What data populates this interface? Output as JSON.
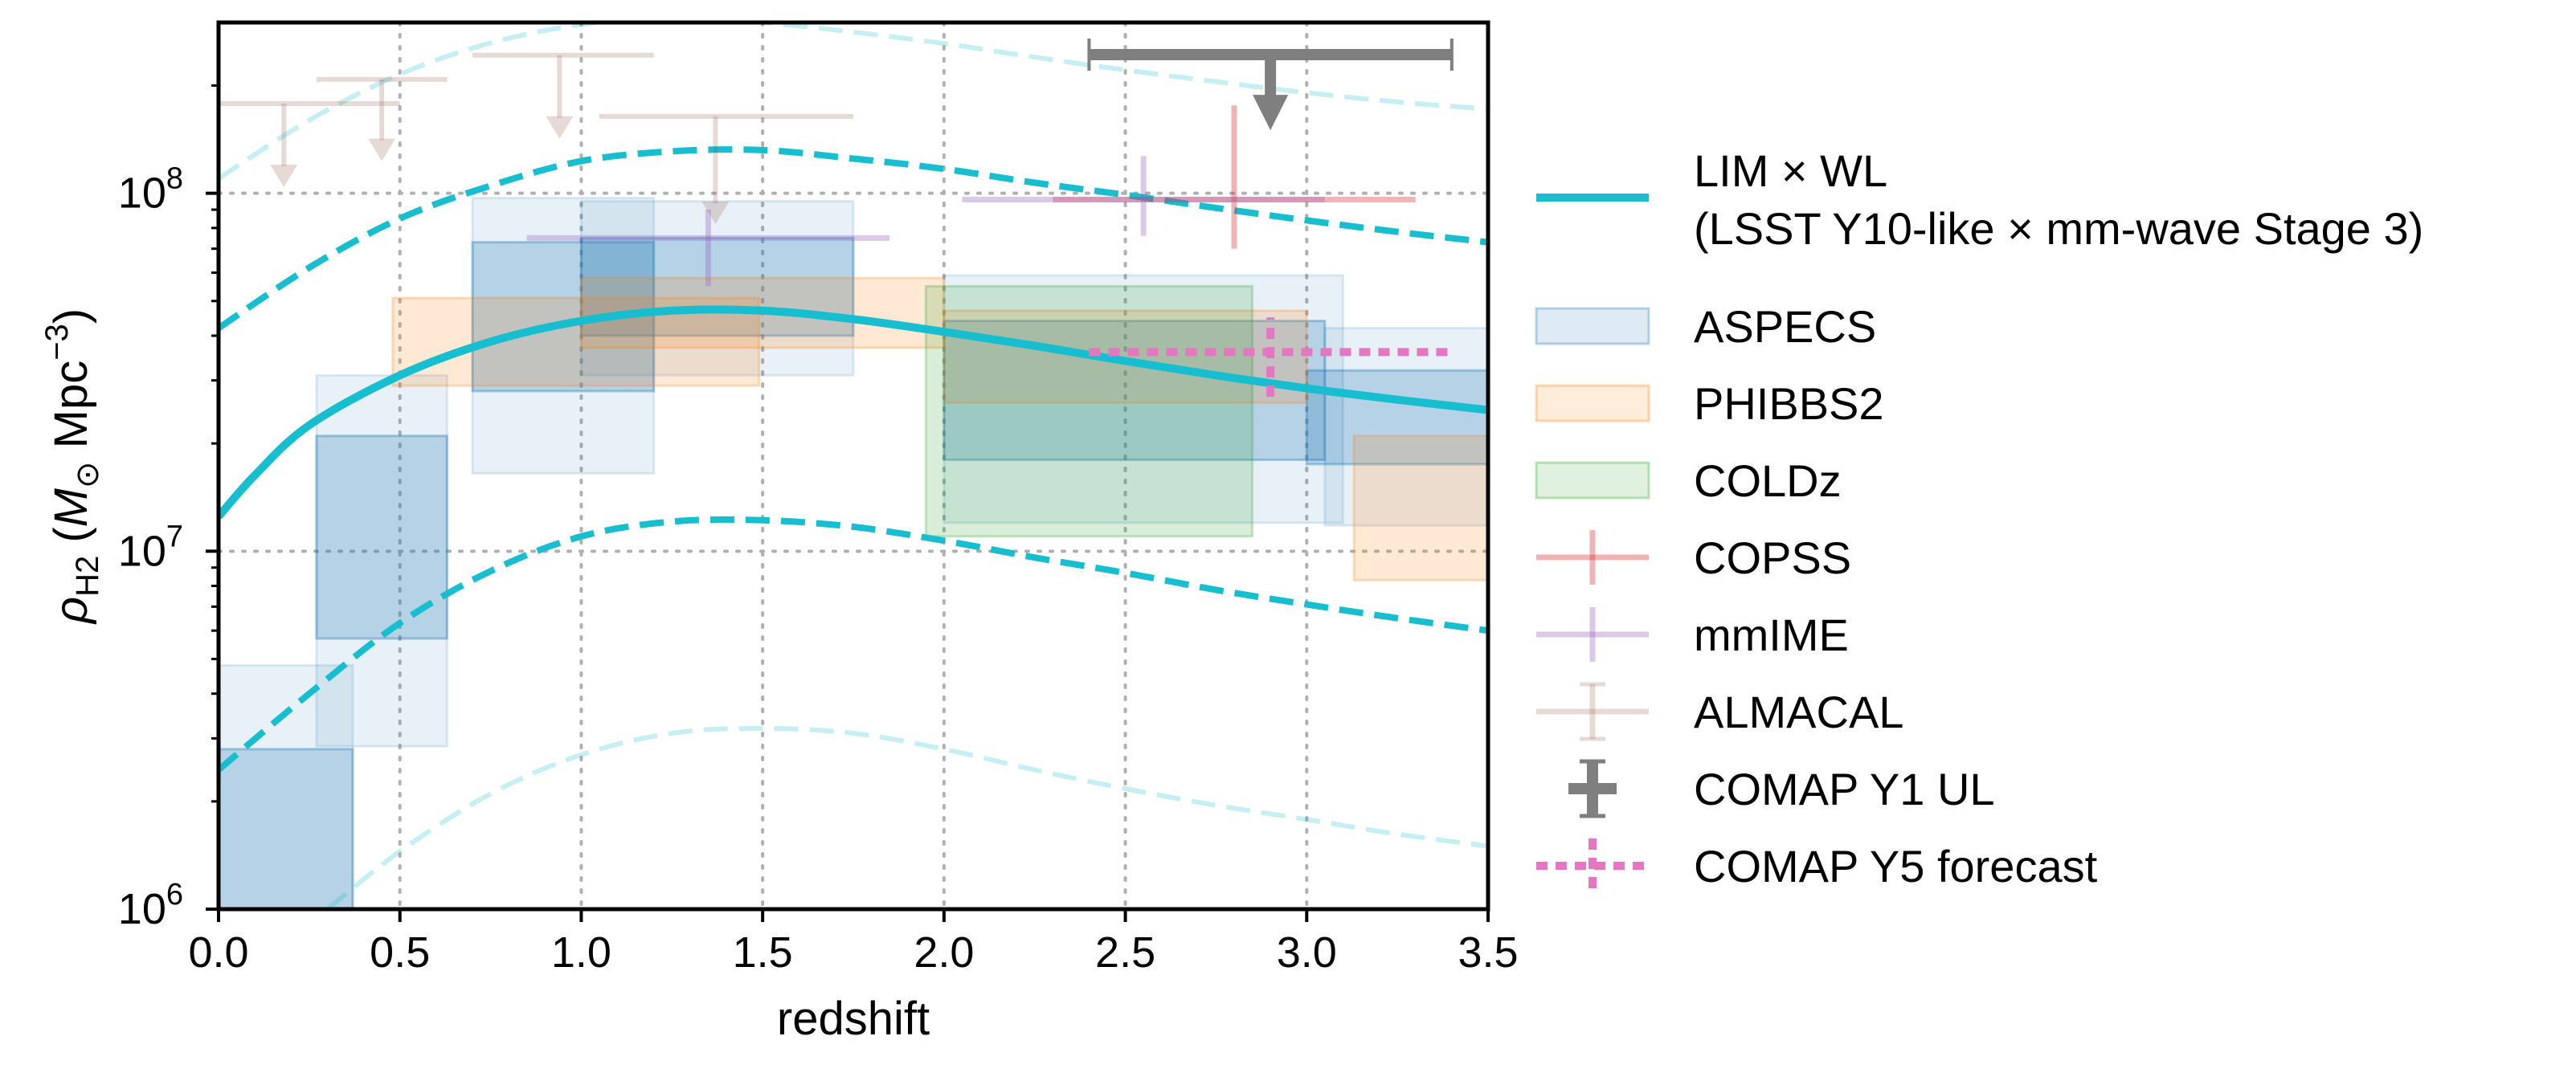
{
  "chart_data": {
    "type": "line",
    "xlabel": "redshift",
    "ylabel": {
      "prefix": "ρ",
      "sub": "H2",
      "pre_unit": " (",
      "unit_M": "M",
      "unit_sun": "⊙",
      "unit_mid": " Mpc",
      "unit_exp": "−3",
      "close": ")"
    },
    "xlim": [
      0,
      3.5
    ],
    "ylim": [
      1000000,
      300000000
    ],
    "yscale": "log",
    "xticks": [
      {
        "v": 0.0,
        "label": "0.0"
      },
      {
        "v": 0.5,
        "label": "0.5"
      },
      {
        "v": 1.0,
        "label": "1.0"
      },
      {
        "v": 1.5,
        "label": "1.5"
      },
      {
        "v": 2.0,
        "label": "2.0"
      },
      {
        "v": 2.5,
        "label": "2.5"
      },
      {
        "v": 3.0,
        "label": "3.0"
      },
      {
        "v": 3.5,
        "label": "3.5"
      }
    ],
    "yticks": [
      {
        "v": 1000000,
        "base": "10",
        "exp": "6"
      },
      {
        "v": 10000000,
        "base": "10",
        "exp": "7"
      },
      {
        "v": 100000000,
        "base": "10",
        "exp": "8"
      }
    ],
    "grid": true,
    "legend_position": "outside-right",
    "colors": {
      "lim_wl": "#17becf",
      "aspecs_fill": "#1f77b4",
      "phibbs_fill": "#ff7f0e",
      "coldz_fill": "#2ca02c",
      "copss": "#d62728",
      "mmime": "#9467bd",
      "almacal": "#8c564b",
      "comap_y1": "#7f7f7f",
      "comap_y5": "#e377c2"
    },
    "lim_wl": {
      "central": {
        "x": [
          0.0,
          0.1,
          0.25,
          0.5,
          0.75,
          1.0,
          1.25,
          1.5,
          1.75,
          2.0,
          2.25,
          2.5,
          2.75,
          3.0,
          3.25,
          3.5
        ],
        "y": [
          12500000,
          16300000,
          22500000,
          31000000,
          38500000,
          44000000,
          47000000,
          47000000,
          44500000,
          41000000,
          37500000,
          34000000,
          31000000,
          28500000,
          26500000,
          24800000
        ]
      },
      "inner_high": {
        "x": [
          0.0,
          0.25,
          0.5,
          0.75,
          1.0,
          1.25,
          1.5,
          1.75,
          2.0,
          2.25,
          2.5,
          2.75,
          3.0,
          3.25,
          3.5
        ],
        "y": [
          42000000,
          62000000,
          85000000,
          105000000,
          123000000,
          131000000,
          132000000,
          125000000,
          117000000,
          107000000,
          99000000,
          91000000,
          84000000,
          78000000,
          73000000
        ]
      },
      "inner_low": {
        "x": [
          0.0,
          0.25,
          0.5,
          0.75,
          1.0,
          1.25,
          1.5,
          1.75,
          2.0,
          2.25,
          2.5,
          2.75,
          3.0,
          3.25,
          3.5
        ],
        "y": [
          2450000,
          4000000,
          6300000,
          8800000,
          11000000,
          12100000,
          12200000,
          11700000,
          10700000,
          9600000,
          8700000,
          7800000,
          7100000,
          6500000,
          6000000
        ]
      },
      "outer_high": {
        "x": [
          0.0,
          0.25,
          0.5,
          0.75,
          1.0,
          1.25,
          1.5,
          1.75,
          2.0,
          2.25,
          2.5,
          2.75,
          3.0,
          3.25,
          3.5
        ],
        "y": [
          110000000,
          160000000,
          215000000,
          263000000,
          296000000,
          310000000,
          300000000,
          282000000,
          262000000,
          240000000,
          221000000,
          205000000,
          191000000,
          180000000,
          172000000
        ]
      },
      "outer_low": {
        "x": [
          0.3,
          0.5,
          0.75,
          1.0,
          1.25,
          1.5,
          1.75,
          2.0,
          2.25,
          2.5,
          2.75,
          3.0,
          3.25,
          3.5
        ],
        "y": [
          1000000,
          1450000,
          2100000,
          2700000,
          3100000,
          3200000,
          3100000,
          2800000,
          2450000,
          2170000,
          1950000,
          1780000,
          1620000,
          1500000
        ]
      }
    },
    "aspecs_boxes": [
      {
        "x0": 0.0,
        "x1": 0.37,
        "y0": 1000000,
        "y1": 2800000,
        "alpha": 0.25
      },
      {
        "x0": 0.0,
        "x1": 0.37,
        "y0": 1000000,
        "y1": 4800000,
        "alpha": 0.1
      },
      {
        "x0": 0.27,
        "x1": 0.63,
        "y0": 5700000,
        "y1": 21000000,
        "alpha": 0.25
      },
      {
        "x0": 0.27,
        "x1": 0.63,
        "y0": 2850000,
        "y1": 31000000,
        "alpha": 0.1
      },
      {
        "x0": 0.7,
        "x1": 1.2,
        "y0": 28000000,
        "y1": 73000000,
        "alpha": 0.25
      },
      {
        "x0": 0.7,
        "x1": 1.2,
        "y0": 16500000,
        "y1": 97000000,
        "alpha": 0.1
      },
      {
        "x0": 1.0,
        "x1": 1.75,
        "y0": 40000000,
        "y1": 75000000,
        "alpha": 0.25
      },
      {
        "x0": 1.0,
        "x1": 1.75,
        "y0": 31000000,
        "y1": 95000000,
        "alpha": 0.1
      },
      {
        "x0": 2.0,
        "x1": 3.05,
        "y0": 18000000,
        "y1": 44000000,
        "alpha": 0.25
      },
      {
        "x0": 2.0,
        "x1": 3.1,
        "y0": 12000000,
        "y1": 59000000,
        "alpha": 0.1
      },
      {
        "x0": 3.0,
        "x1": 3.5,
        "y0": 17500000,
        "y1": 32000000,
        "alpha": 0.25
      },
      {
        "x0": 3.05,
        "x1": 3.5,
        "y0": 11800000,
        "y1": 42000000,
        "alpha": 0.1
      }
    ],
    "phibbs_boxes": [
      {
        "x0": 0.48,
        "x1": 1.49,
        "y0": 29000000,
        "y1": 51000000
      },
      {
        "x0": 1.0,
        "x1": 2.0,
        "y0": 37000000,
        "y1": 58000000
      },
      {
        "x0": 2.0,
        "x1": 3.0,
        "y0": 26000000,
        "y1": 47000000
      },
      {
        "x0": 3.13,
        "x1": 3.5,
        "y0": 8300000,
        "y1": 21000000
      }
    ],
    "coldz_boxes": [
      {
        "x0": 1.95,
        "x1": 2.85,
        "y0": 11000000,
        "y1": 55000000
      }
    ],
    "copss": {
      "x": 2.8,
      "y": 96000000,
      "xerr": [
        2.3,
        3.3
      ],
      "yerr": [
        70000000,
        176000000
      ]
    },
    "mmime": [
      {
        "x": 1.35,
        "y": 75000000,
        "xerr": [
          0.85,
          1.85
        ],
        "yerr": [
          55000000,
          90000000
        ]
      },
      {
        "x": 2.55,
        "y": 96000000,
        "xerr": [
          2.05,
          3.05
        ],
        "yerr": [
          76000000,
          127000000
        ]
      }
    ],
    "almacal_upper_limits": [
      {
        "x": 0.18,
        "y": 178000000,
        "x0": 0.0,
        "x1": 0.5,
        "arrow_to": 104000000
      },
      {
        "x": 0.45,
        "y": 208000000,
        "x0": 0.27,
        "x1": 0.63,
        "arrow_to": 123000000
      },
      {
        "x": 0.94,
        "y": 243000000,
        "x0": 0.7,
        "x1": 1.2,
        "arrow_to": 142000000
      },
      {
        "x": 1.37,
        "y": 164000000,
        "x0": 1.05,
        "x1": 1.75,
        "arrow_to": 82000000
      }
    ],
    "comap_y1_ul": {
      "x": 2.9,
      "y": 244000000,
      "x0": 2.4,
      "x1": 3.4,
      "arrow_to": 150000000
    },
    "comap_y5_forecast": {
      "x": 2.9,
      "y": 36000000,
      "x0": 2.4,
      "x1": 3.4,
      "yerr": [
        27000000,
        45000000
      ]
    },
    "legend": [
      {
        "key": "lim_wl",
        "line1": "LIM × WL",
        "line2": "(LSST Y10-like × mm-wave Stage 3)"
      },
      {
        "key": "aspecs",
        "line1": "ASPECS"
      },
      {
        "key": "phibbs",
        "line1": "PHIBBS2"
      },
      {
        "key": "coldz",
        "line1": "COLDz"
      },
      {
        "key": "copss",
        "line1": "COPSS"
      },
      {
        "key": "mmime",
        "line1": "mmIME"
      },
      {
        "key": "almacal",
        "line1": "ALMACAL"
      },
      {
        "key": "comap_y1",
        "line1": "COMAP Y1 UL"
      },
      {
        "key": "comap_y5",
        "line1": "COMAP Y5 forecast"
      }
    ]
  }
}
